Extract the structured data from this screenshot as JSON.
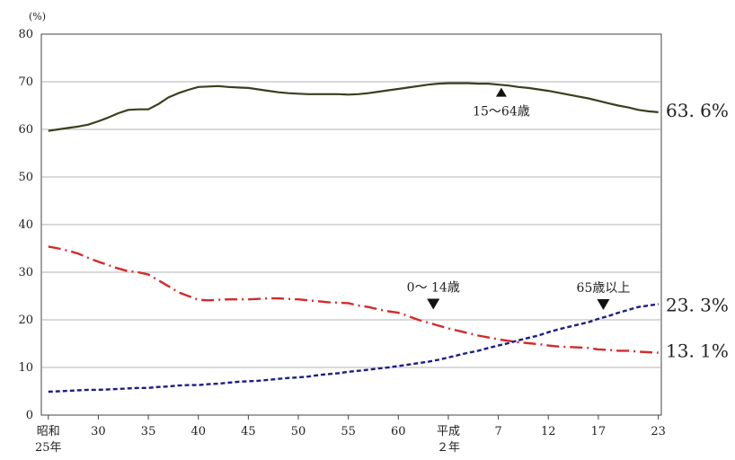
{
  "chart_data": {
    "type": "line",
    "unit_label": "(%)",
    "title": "",
    "xlabel": "",
    "ylabel": "",
    "ylim": [
      0,
      80
    ],
    "yticks": [
      0,
      10,
      20,
      30,
      40,
      50,
      60,
      70,
      80
    ],
    "grid": "horizontal",
    "x_ticks": [
      {
        "year": 1950,
        "label": "昭和",
        "label2": "25年"
      },
      {
        "year": 1955,
        "label": "30"
      },
      {
        "year": 1960,
        "label": "35"
      },
      {
        "year": 1965,
        "label": "40"
      },
      {
        "year": 1970,
        "label": "45"
      },
      {
        "year": 1975,
        "label": "50"
      },
      {
        "year": 1980,
        "label": "55"
      },
      {
        "year": 1985,
        "label": "60"
      },
      {
        "year": 1990,
        "label": "平成",
        "label2": "２年"
      },
      {
        "year": 1995,
        "label": "7"
      },
      {
        "year": 2000,
        "label": "12"
      },
      {
        "year": 2005,
        "label": "17"
      },
      {
        "year": 2011,
        "label": "23"
      }
    ],
    "x": [
      1950,
      1951,
      1952,
      1953,
      1954,
      1955,
      1956,
      1957,
      1958,
      1959,
      1960,
      1961,
      1962,
      1963,
      1964,
      1965,
      1966,
      1967,
      1968,
      1969,
      1970,
      1971,
      1972,
      1973,
      1974,
      1975,
      1976,
      1977,
      1978,
      1979,
      1980,
      1981,
      1982,
      1983,
      1984,
      1985,
      1986,
      1987,
      1988,
      1989,
      1990,
      1991,
      1992,
      1993,
      1994,
      1995,
      1996,
      1997,
      1998,
      1999,
      2000,
      2001,
      2002,
      2003,
      2004,
      2005,
      2006,
      2007,
      2008,
      2009,
      2010,
      2011
    ],
    "series": [
      {
        "key": "working",
        "color": "#3a3f1e",
        "dash": "solid",
        "values": [
          59.7,
          60.0,
          60.3,
          60.6,
          61.0,
          61.7,
          62.5,
          63.4,
          64.1,
          64.2,
          64.2,
          65.3,
          66.7,
          67.6,
          68.3,
          68.9,
          69.0,
          69.1,
          68.9,
          68.8,
          68.7,
          68.4,
          68.1,
          67.8,
          67.6,
          67.5,
          67.4,
          67.4,
          67.4,
          67.4,
          67.3,
          67.4,
          67.6,
          67.9,
          68.2,
          68.5,
          68.8,
          69.1,
          69.4,
          69.6,
          69.7,
          69.7,
          69.7,
          69.6,
          69.6,
          69.4,
          69.2,
          68.9,
          68.7,
          68.4,
          68.1,
          67.7,
          67.3,
          66.9,
          66.5,
          66.0,
          65.5,
          65.0,
          64.6,
          64.1,
          63.8,
          63.6
        ]
      },
      {
        "key": "child",
        "color": "#d42a2a",
        "dash": "dashdot",
        "values": [
          35.4,
          35.0,
          34.5,
          33.9,
          33.0,
          32.2,
          31.5,
          30.8,
          30.2,
          30.0,
          29.5,
          28.3,
          27.1,
          25.8,
          25.0,
          24.2,
          24.1,
          24.2,
          24.3,
          24.3,
          24.3,
          24.4,
          24.5,
          24.5,
          24.4,
          24.3,
          24.1,
          23.9,
          23.7,
          23.6,
          23.5,
          23.0,
          22.7,
          22.2,
          21.8,
          21.5,
          20.8,
          20.0,
          19.4,
          18.8,
          18.2,
          17.7,
          17.2,
          16.7,
          16.3,
          15.9,
          15.6,
          15.3,
          15.1,
          14.9,
          14.6,
          14.4,
          14.3,
          14.2,
          14.1,
          13.8,
          13.7,
          13.5,
          13.5,
          13.3,
          13.2,
          13.1
        ]
      },
      {
        "key": "elderly",
        "color": "#1a1f86",
        "dash": "dashed",
        "values": [
          4.9,
          5.0,
          5.1,
          5.2,
          5.3,
          5.3,
          5.4,
          5.5,
          5.6,
          5.7,
          5.7,
          5.9,
          6.0,
          6.2,
          6.3,
          6.3,
          6.5,
          6.6,
          6.8,
          7.0,
          7.1,
          7.2,
          7.4,
          7.6,
          7.8,
          7.9,
          8.1,
          8.4,
          8.6,
          8.8,
          9.1,
          9.3,
          9.5,
          9.8,
          10.0,
          10.3,
          10.6,
          10.9,
          11.2,
          11.6,
          12.1,
          12.6,
          13.1,
          13.5,
          14.1,
          14.6,
          15.1,
          15.7,
          16.2,
          16.7,
          17.4,
          18.0,
          18.5,
          19.0,
          19.5,
          20.2,
          20.8,
          21.5,
          22.1,
          22.7,
          23.0,
          23.3
        ]
      }
    ],
    "annotations": [
      {
        "key": "working",
        "text": "15～64歳",
        "year": 1995.3,
        "value": 67.8,
        "marker": "up"
      },
      {
        "key": "child",
        "text": "0～ 14歳",
        "year": 1988.5,
        "value": 23.3,
        "marker": "down"
      },
      {
        "key": "elderly",
        "text": "65歳以上",
        "year": 2005.5,
        "value": 23.2,
        "marker": "down"
      }
    ],
    "end_labels": [
      {
        "key": "working",
        "text": "63. 6%"
      },
      {
        "key": "elderly",
        "text": "23. 3%"
      },
      {
        "key": "child",
        "text": "13. 1%"
      }
    ]
  }
}
